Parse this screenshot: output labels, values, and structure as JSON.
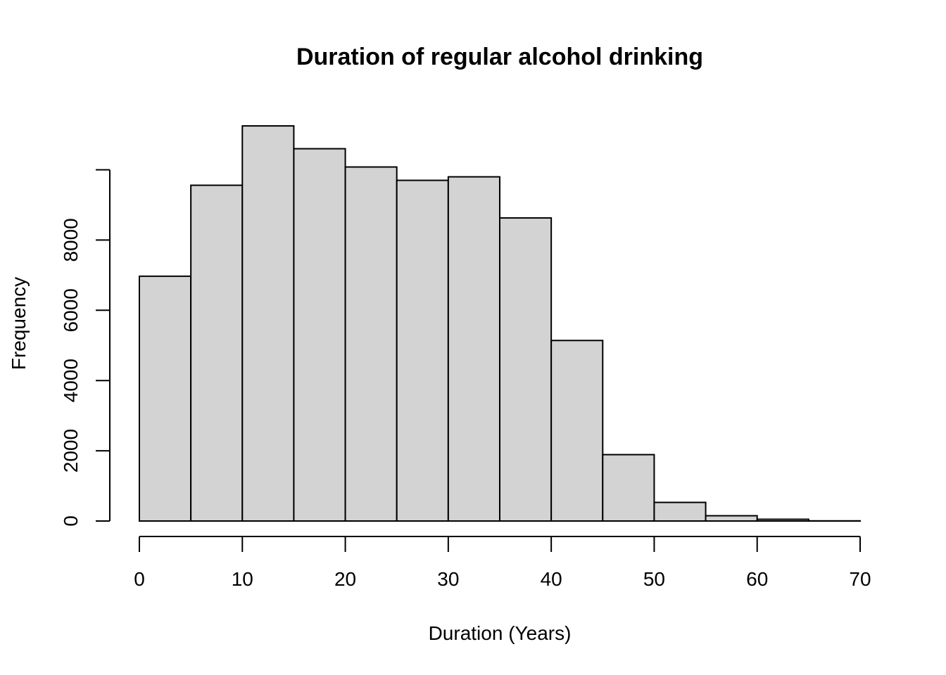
{
  "chart_data": {
    "type": "bar",
    "title": "Duration of regular alcohol drinking",
    "xlabel": "Duration (Years)",
    "ylabel": "Frequency",
    "bin_edges": [
      0,
      5,
      10,
      15,
      20,
      25,
      30,
      35,
      40,
      45,
      50,
      55,
      60,
      65,
      70
    ],
    "values": [
      6970,
      9560,
      11250,
      10600,
      10080,
      9700,
      9800,
      8630,
      5140,
      1890,
      530,
      150,
      50,
      5
    ],
    "xlim": [
      0,
      70
    ],
    "ylim": [
      0,
      11250
    ],
    "x_ticks": [
      0,
      10,
      20,
      30,
      40,
      50,
      60,
      70
    ],
    "y_ticks": [
      0,
      2000,
      4000,
      6000,
      8000,
      10000
    ],
    "y_tick_labels": [
      "0",
      "2000",
      "4000",
      "6000",
      "8000",
      ""
    ],
    "grid": false,
    "bar_color": "#d3d3d3",
    "edge_color": "#000000"
  }
}
